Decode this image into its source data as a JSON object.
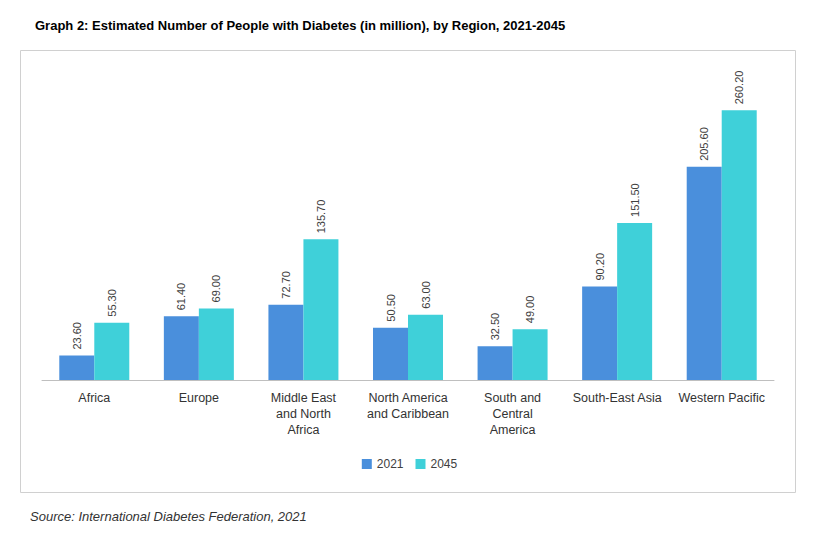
{
  "chart_data": {
    "type": "bar",
    "title": "Graph 2: Estimated Number of People with Diabetes (in million), by Region, 2021-2045",
    "annotations": [
      "Source: International Diabetes Federation, 2021"
    ],
    "categories": [
      "Africa",
      "Europe",
      "Middle East\nand North\nAfrica",
      "North America\nand Caribbean",
      "South and\nCentral\nAmerica",
      "South-East Asia",
      "Western Pacific"
    ],
    "series": [
      {
        "name": "2021",
        "color": "#4a8fdc",
        "values": [
          23.6,
          61.4,
          72.7,
          50.5,
          32.5,
          90.2,
          205.6
        ],
        "value_labels": [
          "23.60",
          "61.40",
          "72.70",
          "50.50",
          "32.50",
          "90.20",
          "205.60"
        ]
      },
      {
        "name": "2045",
        "color": "#3fd0d9",
        "values": [
          55.3,
          69.0,
          135.7,
          63.0,
          49.0,
          151.5,
          260.2
        ],
        "value_labels": [
          "55.30",
          "69.00",
          "135.70",
          "63.00",
          "49.00",
          "151.50",
          "260.20"
        ]
      }
    ],
    "ylim": [
      0,
      300
    ],
    "yticks": [
      0,
      50,
      100,
      150,
      200,
      250,
      300
    ],
    "grid": false,
    "legend": "bottom",
    "data_labels": true,
    "tick_labels": "x"
  }
}
